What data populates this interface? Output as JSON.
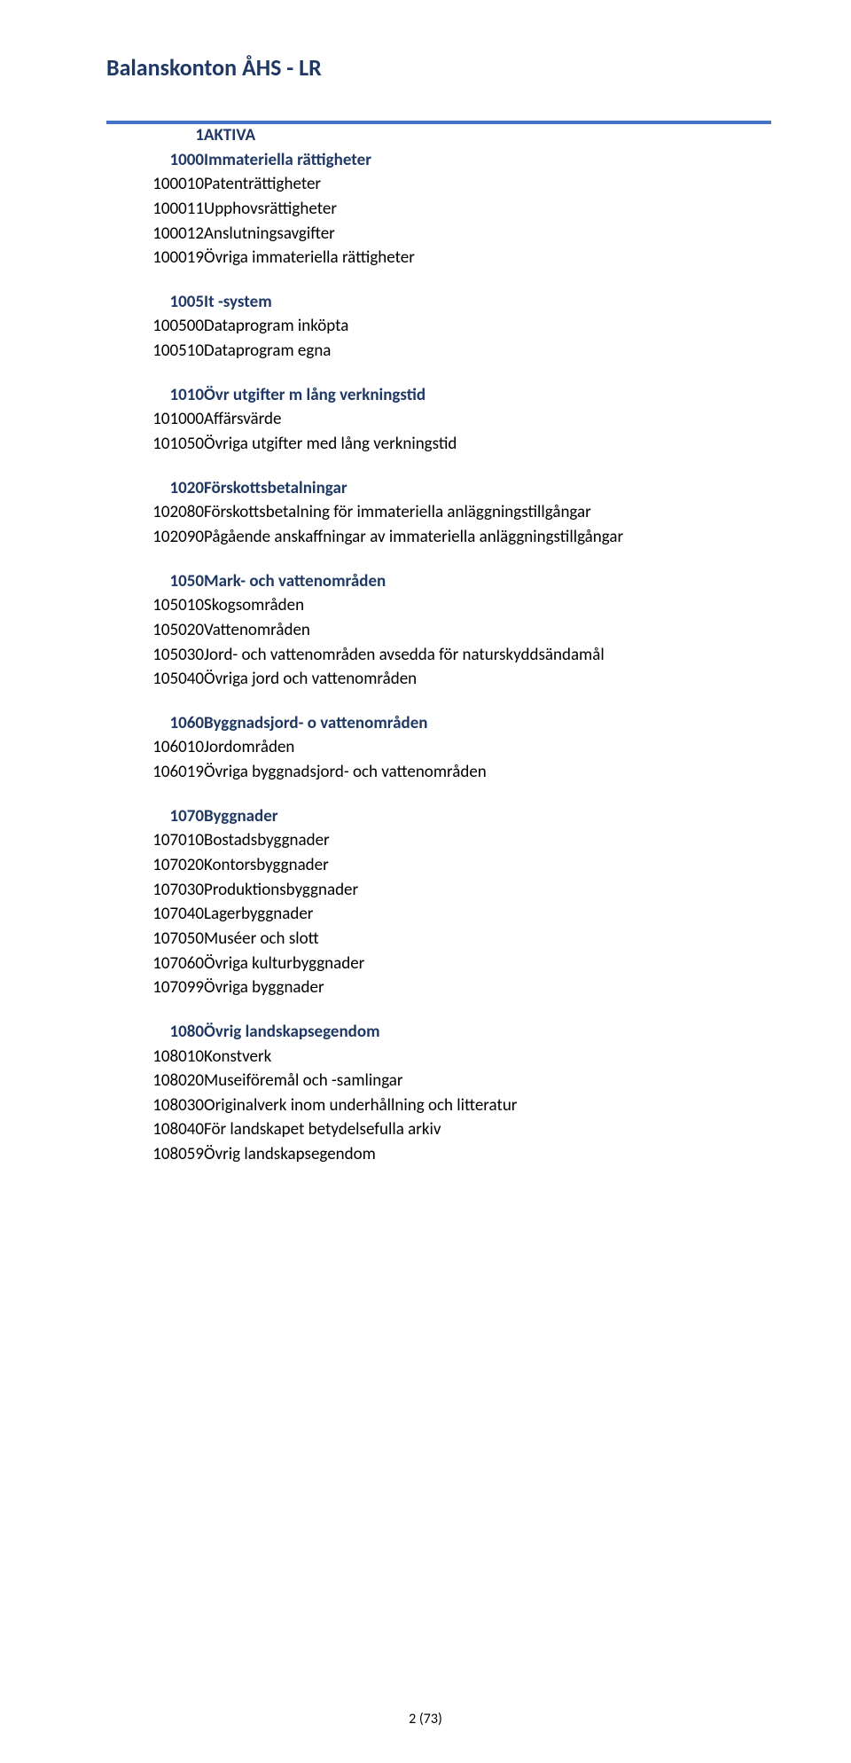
{
  "title": "Balanskonton  ÅHS - LR",
  "footer": "2 (73)",
  "colors": {
    "heading": "#1f3864",
    "rule": "#4472c4",
    "text": "#000000",
    "background": "#ffffff"
  },
  "sections": [
    {
      "code": "1",
      "label": "AKTIVA",
      "rows": [
        {
          "code": "1000",
          "desc": "Immateriella rättigheter",
          "header": true,
          "nogap": true
        },
        {
          "code": "100010",
          "desc": "Patenträttigheter"
        },
        {
          "code": "100011",
          "desc": "Upphovsrättigheter"
        },
        {
          "code": "100012",
          "desc": "Anslutningsavgifter"
        },
        {
          "code": "100019",
          "desc": "Övriga immateriella rättigheter"
        },
        {
          "code": "1005",
          "desc": "It -system",
          "header": true
        },
        {
          "code": "100500",
          "desc": "Dataprogram inköpta"
        },
        {
          "code": "100510",
          "desc": "Dataprogram egna"
        },
        {
          "code": "1010",
          "desc": "Övr utgifter m lång verkningstid",
          "header": true
        },
        {
          "code": "101000",
          "desc": "Affärsvärde"
        },
        {
          "code": "101050",
          "desc": "Övriga utgifter med lång verkningstid"
        },
        {
          "code": "1020",
          "desc": "Förskottsbetalningar",
          "header": true
        },
        {
          "code": "102080",
          "desc": "Förskottsbetalning för immateriella anläggningstillgångar"
        },
        {
          "code": "102090",
          "desc": "Pågående anskaffningar av immateriella anläggningstillgångar"
        },
        {
          "code": "1050",
          "desc": "Mark- och vattenområden",
          "header": true
        },
        {
          "code": "105010",
          "desc": "Skogsområden"
        },
        {
          "code": "105020",
          "desc": "Vattenområden"
        },
        {
          "code": "105030",
          "desc": "Jord- och vattenområden avsedda för naturskyddsändamål"
        },
        {
          "code": "105040",
          "desc": "Övriga jord och vattenområden"
        },
        {
          "code": "1060",
          "desc": "Byggnadsjord- o vattenområden",
          "header": true
        },
        {
          "code": "106010",
          "desc": "Jordområden"
        },
        {
          "code": "106019",
          "desc": "Övriga byggnadsjord- och vattenområden"
        },
        {
          "code": "1070",
          "desc": "Byggnader",
          "header": true
        },
        {
          "code": "107010",
          "desc": "Bostadsbyggnader"
        },
        {
          "code": "107020",
          "desc": "Kontorsbyggnader"
        },
        {
          "code": "107030",
          "desc": "Produktionsbyggnader"
        },
        {
          "code": "107040",
          "desc": "Lagerbyggnader"
        },
        {
          "code": "107050",
          "desc": "Muséer och slott"
        },
        {
          "code": "107060",
          "desc": "Övriga kulturbyggnader"
        },
        {
          "code": "107099",
          "desc": "Övriga byggnader"
        },
        {
          "code": "1080",
          "desc": "Övrig landskapsegendom",
          "header": true
        },
        {
          "code": "108010",
          "desc": "Konstverk"
        },
        {
          "code": "108020",
          "desc": "Museiföremål och -samlingar"
        },
        {
          "code": "108030",
          "desc": "Originalverk inom underhållning och litteratur"
        },
        {
          "code": "108040",
          "desc": "För landskapet betydelsefulla arkiv"
        },
        {
          "code": "108059",
          "desc": "Övrig landskapsegendom"
        }
      ]
    }
  ]
}
